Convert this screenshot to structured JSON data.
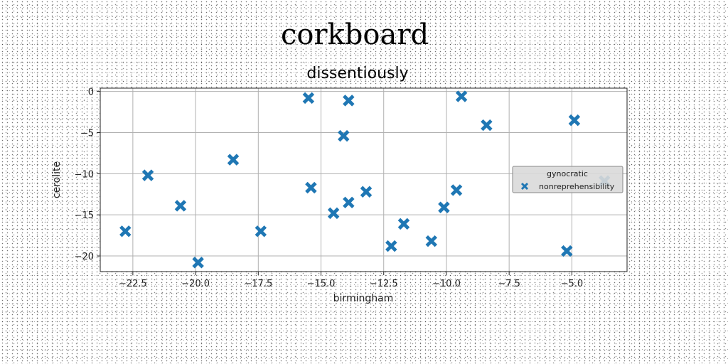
{
  "chart_data": {
    "type": "scatter",
    "title": "corkboard",
    "subtitle": "dissentiously",
    "xlabel": "birmingham",
    "ylabel": "cerolite",
    "xlim": [
      -23.8,
      -2.8
    ],
    "ylim": [
      -21.9,
      0.4
    ],
    "xticks": [
      -22.5,
      -20.0,
      -17.5,
      -15.0,
      -12.5,
      -10.0,
      -7.5,
      -5.0
    ],
    "xtick_labels": [
      "−22.5",
      "−20.0",
      "−17.5",
      "−15.0",
      "−12.5",
      "−10.0",
      "−7.5",
      "−5.0"
    ],
    "yticks": [
      0,
      -5,
      -10,
      -15,
      -20
    ],
    "ytick_labels": [
      "0",
      "−5",
      "−10",
      "−15",
      "−20"
    ],
    "grid": true,
    "legend": {
      "title": "gynocratic",
      "position": "center-right"
    },
    "marker_color": "#1f77b4",
    "series": [
      {
        "name": "nonreprehensibility",
        "marker": "x-filled",
        "points": [
          [
            -22.8,
            -17.0
          ],
          [
            -21.9,
            -10.2
          ],
          [
            -20.6,
            -13.9
          ],
          [
            -19.9,
            -20.8
          ],
          [
            -18.5,
            -8.3
          ],
          [
            -17.4,
            -17.0
          ],
          [
            -15.5,
            -0.8
          ],
          [
            -15.4,
            -11.7
          ],
          [
            -14.5,
            -14.8
          ],
          [
            -14.1,
            -5.4
          ],
          [
            -13.9,
            -1.1
          ],
          [
            -13.9,
            -13.5
          ],
          [
            -13.2,
            -12.2
          ],
          [
            -12.2,
            -18.8
          ],
          [
            -11.7,
            -16.1
          ],
          [
            -10.6,
            -18.2
          ],
          [
            -10.1,
            -14.1
          ],
          [
            -9.6,
            -12.0
          ],
          [
            -9.4,
            -0.6
          ],
          [
            -8.4,
            -4.1
          ],
          [
            -5.2,
            -19.4
          ],
          [
            -4.9,
            -3.5
          ],
          [
            -3.7,
            -10.9
          ]
        ]
      }
    ]
  }
}
